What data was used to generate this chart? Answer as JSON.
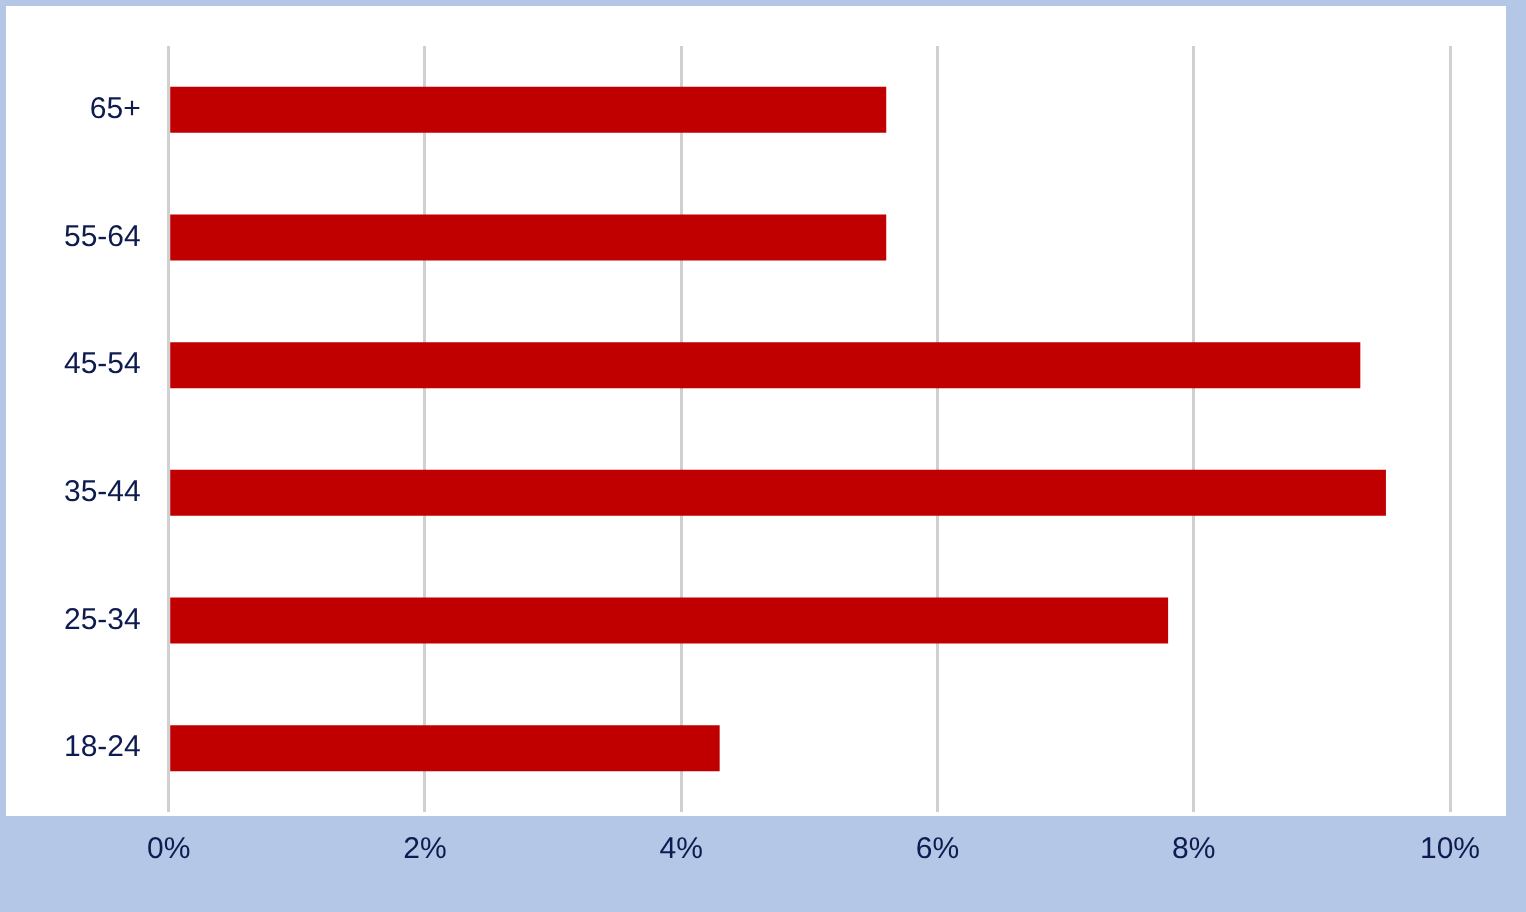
{
  "chart_data": {
    "type": "bar",
    "orientation": "horizontal",
    "categories": [
      "65+",
      "55-64",
      "45-54",
      "35-44",
      "25-34",
      "18-24"
    ],
    "values": [
      5.6,
      5.6,
      9.3,
      9.5,
      7.8,
      4.3
    ],
    "color": "#c00000",
    "xlim": [
      0,
      10
    ],
    "xticks": [
      {
        "value": 0,
        "label": "0%"
      },
      {
        "value": 2,
        "label": "2%"
      },
      {
        "value": 4,
        "label": "4%"
      },
      {
        "value": 6,
        "label": "6%"
      },
      {
        "value": 8,
        "label": "8%"
      },
      {
        "value": 10,
        "label": "10%"
      }
    ],
    "grid": "x",
    "legend": false
  }
}
